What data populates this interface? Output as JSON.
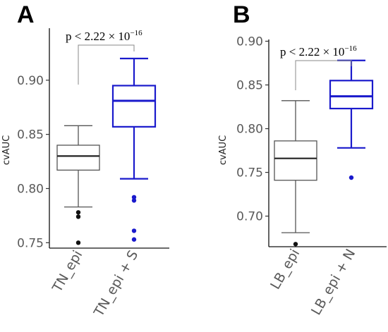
{
  "chart_data": [
    {
      "type": "box",
      "panel_label": "A",
      "ylabel": "cvAUC",
      "ylim": [
        0.745,
        0.948
      ],
      "yticks": [
        0.75,
        0.8,
        0.85,
        0.9
      ],
      "ytick_labels": [
        "0.75",
        "0.80",
        "0.85",
        "0.90"
      ],
      "categories": [
        "TN_epi",
        "TN_epi + S"
      ],
      "colors": [
        "#555555",
        "#1a1acc"
      ],
      "boxes": [
        {
          "whisker_low": 0.783,
          "q1": 0.817,
          "median": 0.83,
          "q3": 0.84,
          "whisker_high": 0.858,
          "outliers": [
            0.778,
            0.774,
            0.75
          ]
        },
        {
          "whisker_low": 0.809,
          "q1": 0.857,
          "median": 0.881,
          "q3": 0.895,
          "whisker_high": 0.92,
          "outliers": [
            0.792,
            0.789,
            0.761,
            0.753
          ]
        }
      ],
      "annotation": {
        "text": "p < 2.22 × 10",
        "superscript": "−16"
      }
    },
    {
      "type": "box",
      "panel_label": "B",
      "ylabel": "cvAUC",
      "ylim": [
        0.665,
        0.902
      ],
      "yticks": [
        0.7,
        0.75,
        0.8,
        0.85,
        0.9
      ],
      "ytick_labels": [
        "0.70",
        "0.75",
        "0.80",
        "0.85",
        "0.90"
      ],
      "categories": [
        "LB_epi",
        "LB_epi + N"
      ],
      "colors": [
        "#555555",
        "#1a1acc"
      ],
      "boxes": [
        {
          "whisker_low": 0.681,
          "q1": 0.741,
          "median": 0.766,
          "q3": 0.786,
          "whisker_high": 0.832,
          "outliers": [
            0.668
          ]
        },
        {
          "whisker_low": 0.778,
          "q1": 0.823,
          "median": 0.837,
          "q3": 0.855,
          "whisker_high": 0.878,
          "outliers": [
            0.744
          ]
        }
      ],
      "annotation": {
        "text": "p < 2.22 × 10",
        "superscript": "−16"
      }
    }
  ]
}
